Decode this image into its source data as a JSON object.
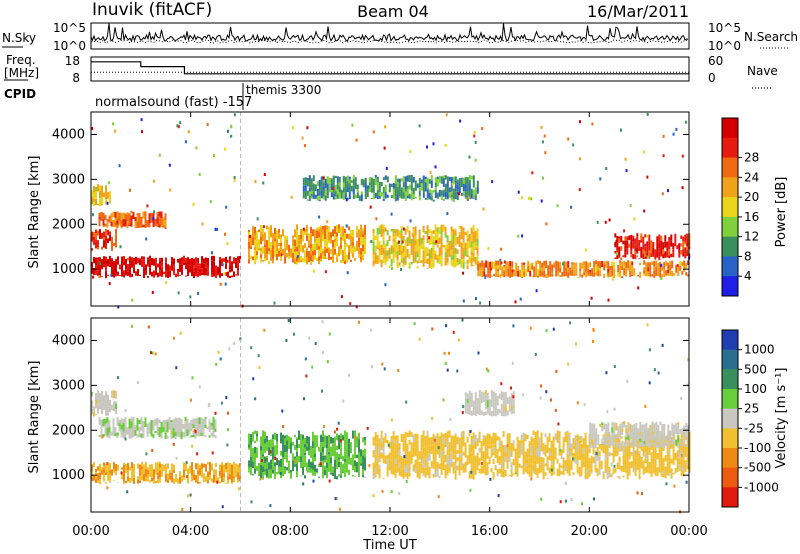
{
  "header": {
    "station": "Inuvik (fitACF)",
    "beam": "Beam 04",
    "date": "16/Mar/2011"
  },
  "left_labels": {
    "nsky": "N.Sky",
    "freq_line1": "Freq.",
    "freq_line2": "[MHz]",
    "cpid": "CPID"
  },
  "right_labels": {
    "nsearch": "N.Search",
    "nave": "Nave"
  },
  "cpid_labels": {
    "first": "normalsound (fast) -157",
    "second": "themis 3300"
  },
  "noise_ticks": {
    "top": "10^5",
    "bottom": "10^0"
  },
  "freq_ticks": {
    "top": "18",
    "bottom": "8"
  },
  "nave_ticks": {
    "top": "60",
    "bottom": "0"
  },
  "axes": {
    "ylabel": "Slant Range [km]",
    "xlabel": "Time UT",
    "xticks": [
      "00:00",
      "04:00",
      "08:00",
      "12:00",
      "16:00",
      "20:00",
      "00:00"
    ],
    "yticks": [
      "1000",
      "2000",
      "3000",
      "4000"
    ]
  },
  "colorbars": {
    "power": {
      "label": "Power [dB]",
      "ticks": [
        "4",
        "8",
        "12",
        "16",
        "20",
        "24",
        "28"
      ],
      "colors": [
        "#1f1fe6",
        "#2a63c8",
        "#3b8f5c",
        "#7fd03a",
        "#e9d51c",
        "#f2a21a",
        "#f06a12",
        "#e61a0e",
        "#d40000"
      ]
    },
    "velocity": {
      "label": "Velocity [m s⁻¹]",
      "ticks": [
        "1000",
        "500",
        "100",
        "25",
        "-25",
        "-100",
        "-500",
        "-1000"
      ],
      "colors": [
        "#1f3fb0",
        "#2a6f8f",
        "#3b8f5c",
        "#6acd3a",
        "#c8c8c0",
        "#f0c030",
        "#f08a15",
        "#ee5a10",
        "#e01a0e"
      ]
    }
  },
  "chart_data": {
    "type": "heatmap",
    "title": "Inuvik (fitACF)",
    "subtitle": "Beam 04",
    "date": "16/Mar/2011",
    "xlabel": "Time UT",
    "ylabel": "Slant Range [km]",
    "x_range_hours": [
      0,
      24
    ],
    "y_range_km": [
      180,
      4500
    ],
    "panels": [
      {
        "name": "Power",
        "unit": "dB",
        "clim": [
          0,
          30
        ],
        "scatter_regions": [
          {
            "t0": 0.0,
            "t1": 6.0,
            "r0": 800,
            "r1": 1300,
            "value": 28
          },
          {
            "t0": 0.0,
            "t1": 1.0,
            "r0": 1400,
            "r1": 1900,
            "value": 24
          },
          {
            "t0": 0.3,
            "t1": 3.0,
            "r0": 1900,
            "r1": 2300,
            "value": 22
          },
          {
            "t0": 0.0,
            "t1": 0.8,
            "r0": 2400,
            "r1": 2900,
            "value": 16
          },
          {
            "t0": 6.3,
            "t1": 11.0,
            "r0": 1100,
            "r1": 2000,
            "value": 18
          },
          {
            "t0": 11.3,
            "t1": 15.5,
            "r0": 1000,
            "r1": 2000,
            "value": 16
          },
          {
            "t0": 15.5,
            "t1": 24.0,
            "r0": 800,
            "r1": 1200,
            "value": 20
          },
          {
            "t0": 21.0,
            "t1": 24.0,
            "r0": 1200,
            "r1": 1800,
            "value": 26
          },
          {
            "t0": 8.5,
            "t1": 15.5,
            "r0": 2500,
            "r1": 3100,
            "value": 8
          }
        ]
      },
      {
        "name": "Velocity",
        "unit": "m s^-1",
        "clim": [
          -1000,
          1000
        ],
        "scatter_regions": [
          {
            "t0": 0.0,
            "t1": 6.0,
            "r0": 800,
            "r1": 1300,
            "value": -300
          },
          {
            "t0": 0.0,
            "t1": 1.0,
            "r0": 2300,
            "r1": 2900,
            "value": 0
          },
          {
            "t0": 0.3,
            "t1": 5.0,
            "r0": 1800,
            "r1": 2300,
            "value": 60
          },
          {
            "t0": 6.3,
            "t1": 11.0,
            "r0": 900,
            "r1": 2000,
            "value": 300
          },
          {
            "t0": 11.3,
            "t1": 24.0,
            "r0": 900,
            "r1": 2000,
            "value": -200
          },
          {
            "t0": 20.0,
            "t1": 24.0,
            "r0": 1600,
            "r1": 2200,
            "value": 0
          },
          {
            "t0": 15.0,
            "t1": 17.0,
            "r0": 2300,
            "r1": 2900,
            "value": 0
          }
        ]
      }
    ],
    "frequency_MHz": [
      {
        "t0": 0.0,
        "t1": 2.0,
        "value": 16
      },
      {
        "t0": 2.0,
        "t1": 3.75,
        "value": 14
      },
      {
        "t0": 3.75,
        "t1": 24.0,
        "value": 11
      }
    ],
    "nave": 22,
    "cpid_segments": [
      {
        "t0": 0.0,
        "t1": 6.0,
        "name": "normalsound (fast) -157"
      },
      {
        "t0": 6.0,
        "t1": 24.0,
        "name": "themis 3300"
      }
    ]
  }
}
